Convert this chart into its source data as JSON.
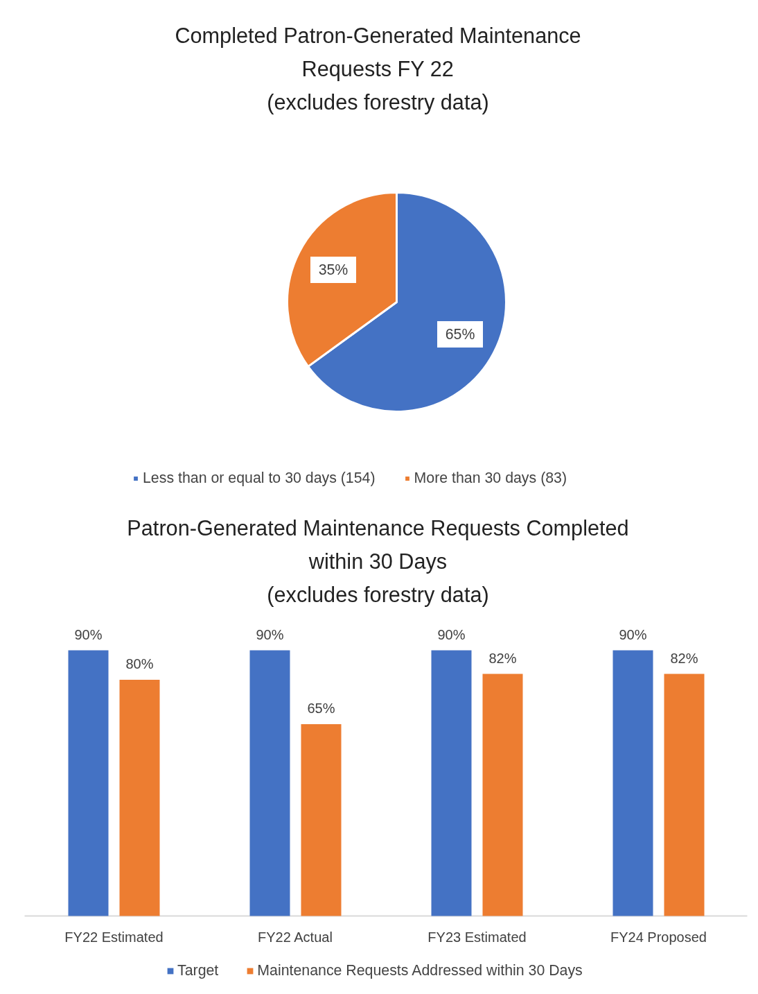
{
  "chart_data": [
    {
      "type": "pie",
      "title": "Completed Patron-Generated Maintenance\nRequests FY 22\n(excludes forestry data)",
      "categories": [
        "Less than or equal to 30 days (154)",
        "More than 30 days (83)"
      ],
      "values": [
        65,
        35
      ],
      "value_labels": [
        "65%",
        "35%"
      ],
      "colors": [
        "#4472c4",
        "#ed7d31"
      ],
      "legend": "bottom"
    },
    {
      "type": "bar",
      "title": "Patron-Generated Maintenance Requests Completed\nwithin 30 Days\n(excludes forestry data)",
      "categories": [
        "FY22 Estimated",
        "FY22 Actual",
        "FY23 Estimated",
        "FY24 Proposed"
      ],
      "series": [
        {
          "name": "Target",
          "color": "#4472c4",
          "values": [
            90,
            90,
            90,
            90
          ],
          "value_labels": [
            "90%",
            "90%",
            "90%",
            "90%"
          ]
        },
        {
          "name": "Maintenance Requests Addressed within 30 Days",
          "color": "#ed7d31",
          "values": [
            80,
            65,
            82,
            82
          ],
          "value_labels": [
            "80%",
            "65%",
            "82%",
            "82%"
          ]
        }
      ],
      "tick_labels": "x",
      "legend": "bottom"
    }
  ]
}
